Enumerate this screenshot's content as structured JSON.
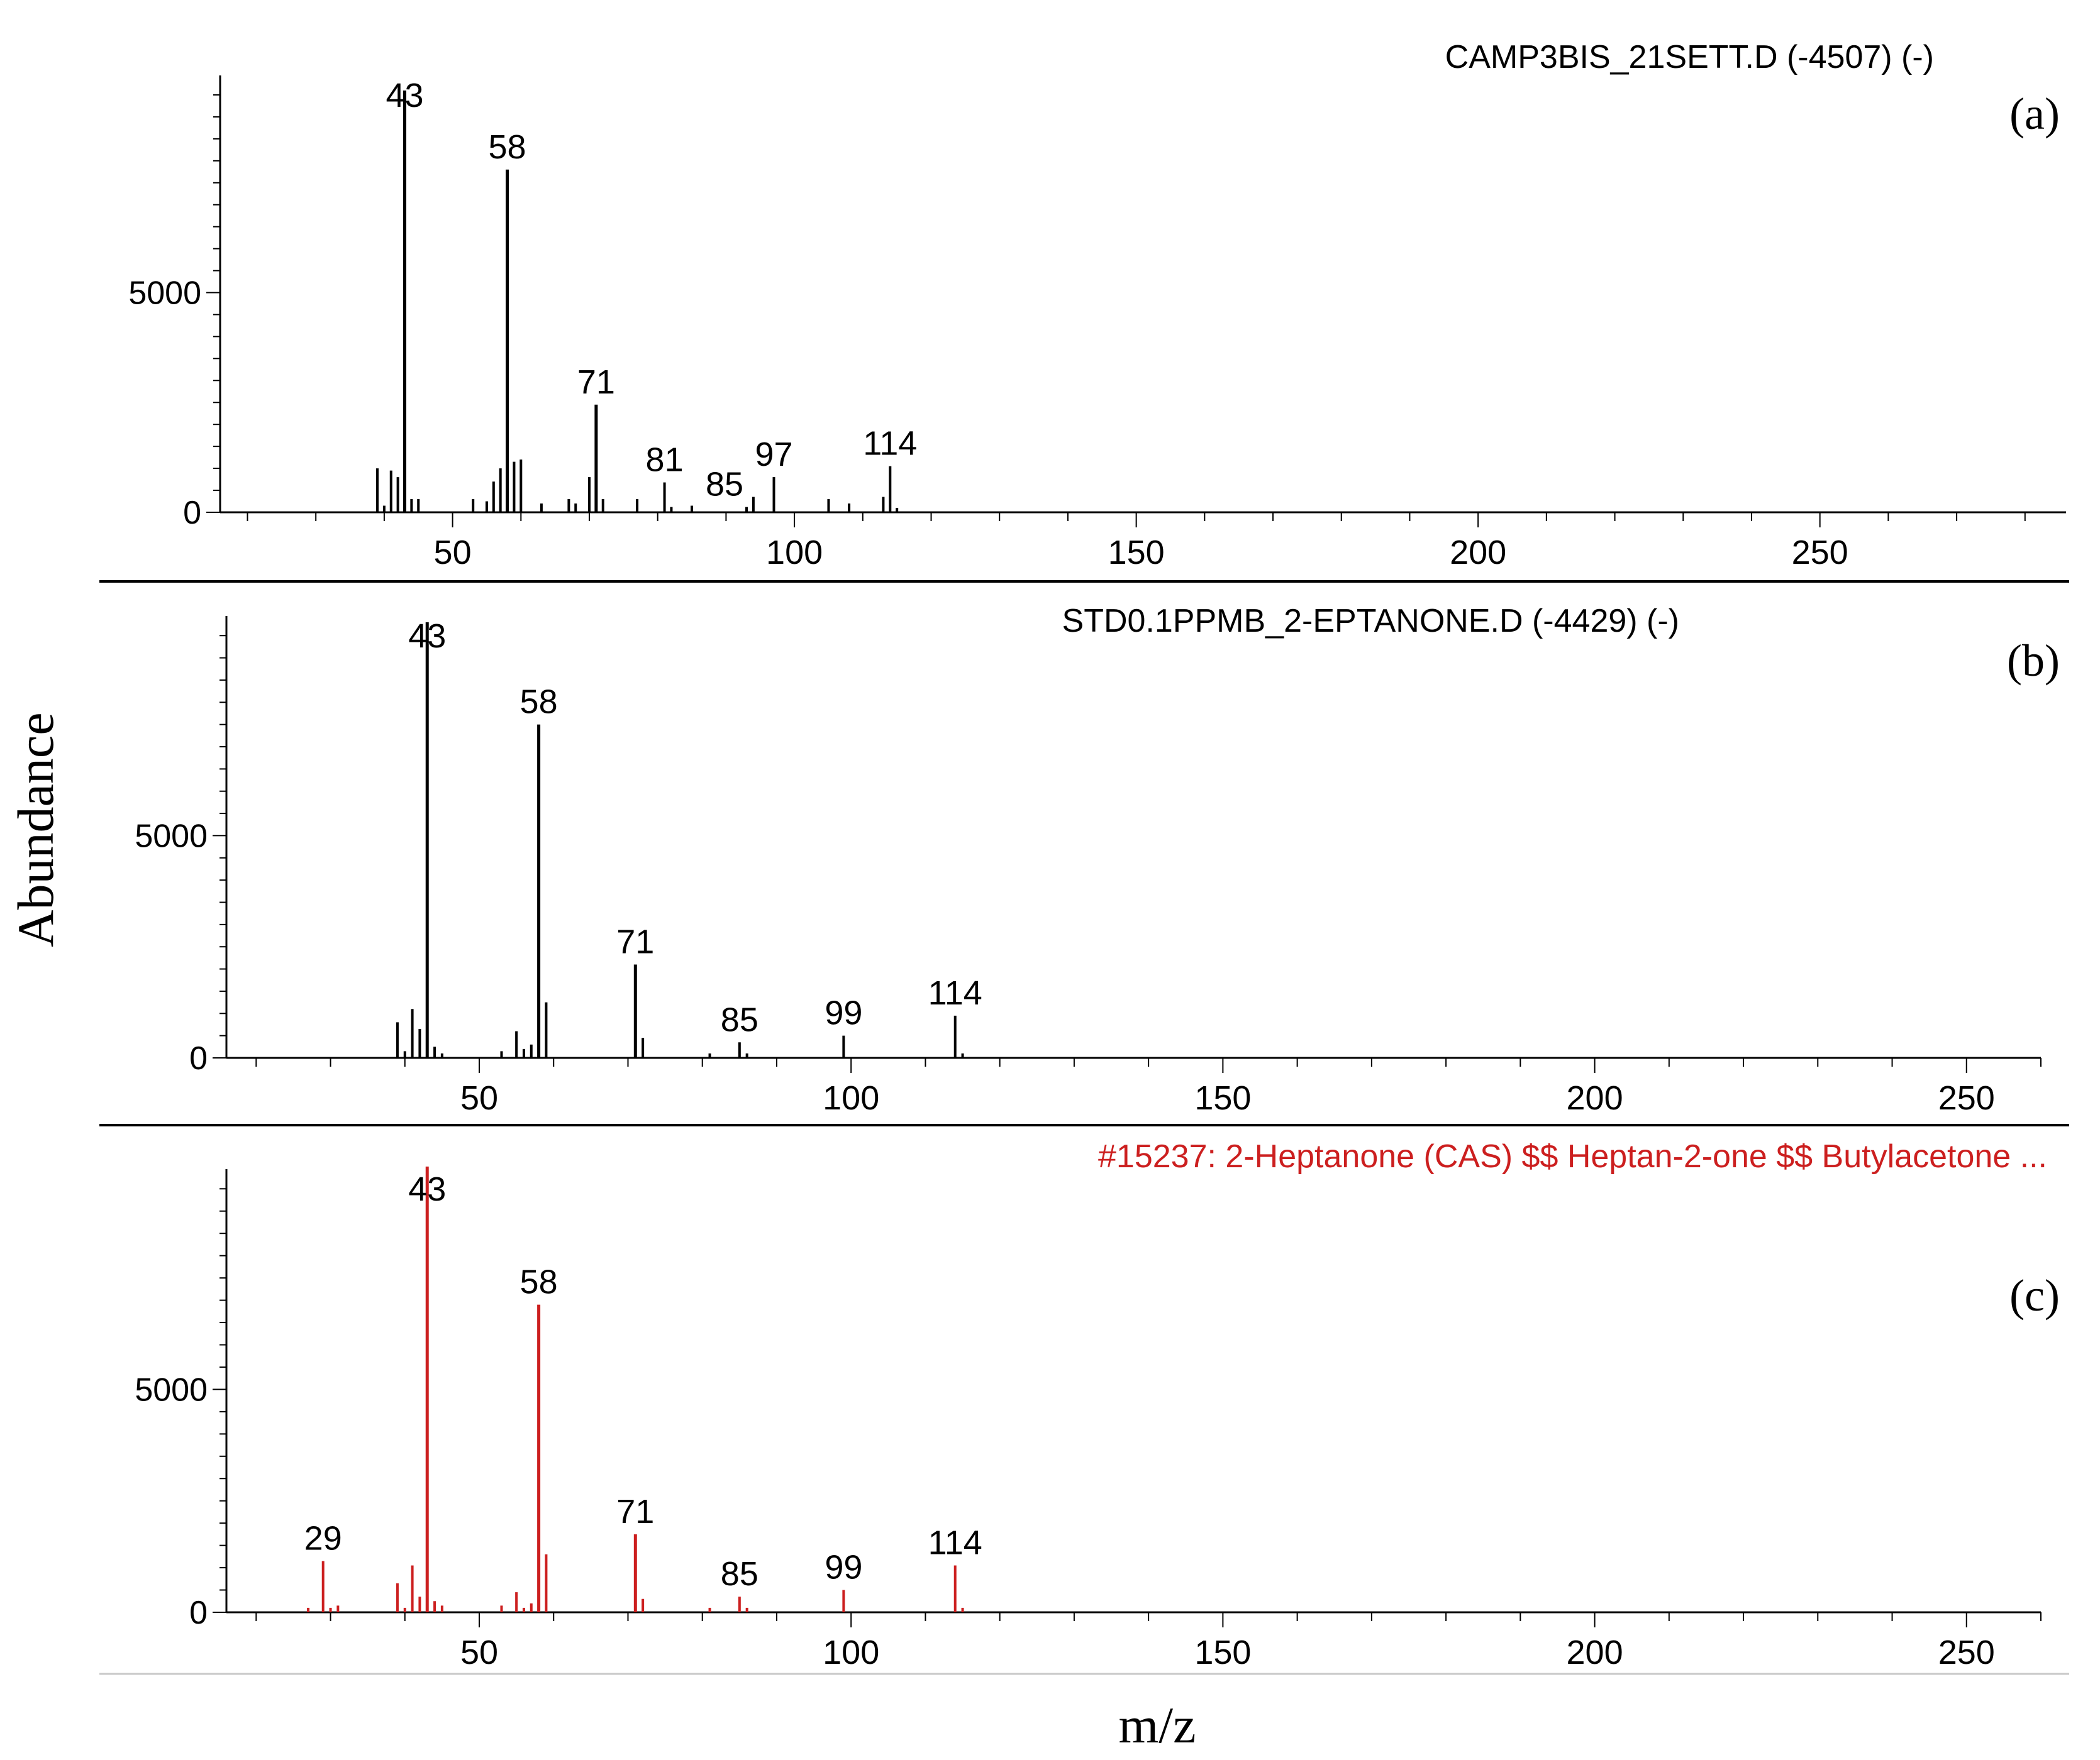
{
  "figure": {
    "ylabel": "Abundance",
    "xlabel": "m/z"
  },
  "colors": {
    "axis": "#000000",
    "black_series": "#000000",
    "library_series": "#cc1f1f",
    "divider": "#c8c8c8"
  },
  "chart_data": [
    {
      "type": "bar",
      "panel_label": "(a)",
      "title": "CAMP3BIS_21SETT.D (-4507) (-)",
      "xlim": [
        16,
        286
      ],
      "ylim": [
        0,
        9800
      ],
      "xticks": [
        50,
        100,
        150,
        200,
        250
      ],
      "yticks": [
        0,
        5000
      ],
      "color": "#000000",
      "peaks": [
        {
          "mz": 39,
          "abundance": 1000
        },
        {
          "mz": 40,
          "abundance": 150
        },
        {
          "mz": 41,
          "abundance": 950
        },
        {
          "mz": 42,
          "abundance": 800
        },
        {
          "mz": 43,
          "abundance": 9600
        },
        {
          "mz": 44,
          "abundance": 300
        },
        {
          "mz": 45,
          "abundance": 300
        },
        {
          "mz": 53,
          "abundance": 300
        },
        {
          "mz": 55,
          "abundance": 250
        },
        {
          "mz": 56,
          "abundance": 700
        },
        {
          "mz": 57,
          "abundance": 1000
        },
        {
          "mz": 58,
          "abundance": 7800
        },
        {
          "mz": 59,
          "abundance": 1150
        },
        {
          "mz": 60,
          "abundance": 1200
        },
        {
          "mz": 63,
          "abundance": 200
        },
        {
          "mz": 67,
          "abundance": 300
        },
        {
          "mz": 68,
          "abundance": 200
        },
        {
          "mz": 70,
          "abundance": 800
        },
        {
          "mz": 71,
          "abundance": 2450
        },
        {
          "mz": 72,
          "abundance": 300
        },
        {
          "mz": 77,
          "abundance": 300
        },
        {
          "mz": 81,
          "abundance": 680
        },
        {
          "mz": 82,
          "abundance": 120
        },
        {
          "mz": 85,
          "abundance": 150
        },
        {
          "mz": 93,
          "abundance": 120
        },
        {
          "mz": 94,
          "abundance": 350
        },
        {
          "mz": 97,
          "abundance": 800
        },
        {
          "mz": 105,
          "abundance": 300
        },
        {
          "mz": 108,
          "abundance": 200
        },
        {
          "mz": 113,
          "abundance": 350
        },
        {
          "mz": 114,
          "abundance": 1050
        },
        {
          "mz": 115,
          "abundance": 100
        }
      ],
      "peak_labels": [
        {
          "mz": 43,
          "text": "43"
        },
        {
          "mz": 58,
          "text": "58"
        },
        {
          "mz": 71,
          "text": "71"
        },
        {
          "mz": 81,
          "text": "81"
        },
        {
          "mz": 85,
          "text": "85"
        },
        {
          "mz": 97,
          "text": "97"
        },
        {
          "mz": 114,
          "text": "114"
        }
      ]
    },
    {
      "type": "bar",
      "panel_label": "(b)",
      "title": "STD0.1PPMB_2-EPTANONE.D (-4429) (-)",
      "xlim": [
        16,
        260
      ],
      "ylim": [
        0,
        9800
      ],
      "xticks": [
        50,
        100,
        150,
        200,
        250
      ],
      "yticks": [
        0,
        5000
      ],
      "color": "#000000",
      "peaks": [
        {
          "mz": 39,
          "abundance": 800
        },
        {
          "mz": 40,
          "abundance": 150
        },
        {
          "mz": 41,
          "abundance": 1100
        },
        {
          "mz": 42,
          "abundance": 650
        },
        {
          "mz": 43,
          "abundance": 9800
        },
        {
          "mz": 44,
          "abundance": 250
        },
        {
          "mz": 45,
          "abundance": 100
        },
        {
          "mz": 53,
          "abundance": 150
        },
        {
          "mz": 55,
          "abundance": 600
        },
        {
          "mz": 56,
          "abundance": 200
        },
        {
          "mz": 57,
          "abundance": 300
        },
        {
          "mz": 58,
          "abundance": 7500
        },
        {
          "mz": 59,
          "abundance": 1250
        },
        {
          "mz": 71,
          "abundance": 2100
        },
        {
          "mz": 72,
          "abundance": 450
        },
        {
          "mz": 81,
          "abundance": 100
        },
        {
          "mz": 85,
          "abundance": 350
        },
        {
          "mz": 86,
          "abundance": 100
        },
        {
          "mz": 99,
          "abundance": 500
        },
        {
          "mz": 114,
          "abundance": 950
        },
        {
          "mz": 115,
          "abundance": 100
        }
      ],
      "peak_labels": [
        {
          "mz": 43,
          "text": "43"
        },
        {
          "mz": 58,
          "text": "58"
        },
        {
          "mz": 71,
          "text": "71"
        },
        {
          "mz": 85,
          "text": "85"
        },
        {
          "mz": 99,
          "text": "99"
        },
        {
          "mz": 114,
          "text": "114"
        }
      ]
    },
    {
      "type": "bar",
      "panel_label": "(c)",
      "title": "#15237: 2-Heptanone (CAS) $$ Heptan-2-one $$ Butylacetone ...",
      "xlim": [
        16,
        260
      ],
      "ylim": [
        0,
        9800
      ],
      "xticks": [
        50,
        100,
        150,
        200,
        250
      ],
      "yticks": [
        0,
        5000
      ],
      "color": "#cc1f1f",
      "peaks": [
        {
          "mz": 27,
          "abundance": 100
        },
        {
          "mz": 29,
          "abundance": 1150
        },
        {
          "mz": 30,
          "abundance": 100
        },
        {
          "mz": 31,
          "abundance": 150
        },
        {
          "mz": 39,
          "abundance": 650
        },
        {
          "mz": 40,
          "abundance": 100
        },
        {
          "mz": 41,
          "abundance": 1050
        },
        {
          "mz": 42,
          "abundance": 350
        },
        {
          "mz": 43,
          "abundance": 10000
        },
        {
          "mz": 44,
          "abundance": 250
        },
        {
          "mz": 45,
          "abundance": 150
        },
        {
          "mz": 53,
          "abundance": 150
        },
        {
          "mz": 55,
          "abundance": 450
        },
        {
          "mz": 56,
          "abundance": 100
        },
        {
          "mz": 57,
          "abundance": 200
        },
        {
          "mz": 58,
          "abundance": 6900
        },
        {
          "mz": 59,
          "abundance": 1300
        },
        {
          "mz": 71,
          "abundance": 1750
        },
        {
          "mz": 72,
          "abundance": 300
        },
        {
          "mz": 81,
          "abundance": 100
        },
        {
          "mz": 85,
          "abundance": 350
        },
        {
          "mz": 86,
          "abundance": 100
        },
        {
          "mz": 99,
          "abundance": 500
        },
        {
          "mz": 114,
          "abundance": 1050
        },
        {
          "mz": 115,
          "abundance": 100
        }
      ],
      "peak_labels": [
        {
          "mz": 29,
          "text": "29"
        },
        {
          "mz": 43,
          "text": "43"
        },
        {
          "mz": 58,
          "text": "58"
        },
        {
          "mz": 71,
          "text": "71"
        },
        {
          "mz": 85,
          "text": "85"
        },
        {
          "mz": 99,
          "text": "99"
        },
        {
          "mz": 114,
          "text": "114"
        }
      ]
    }
  ]
}
